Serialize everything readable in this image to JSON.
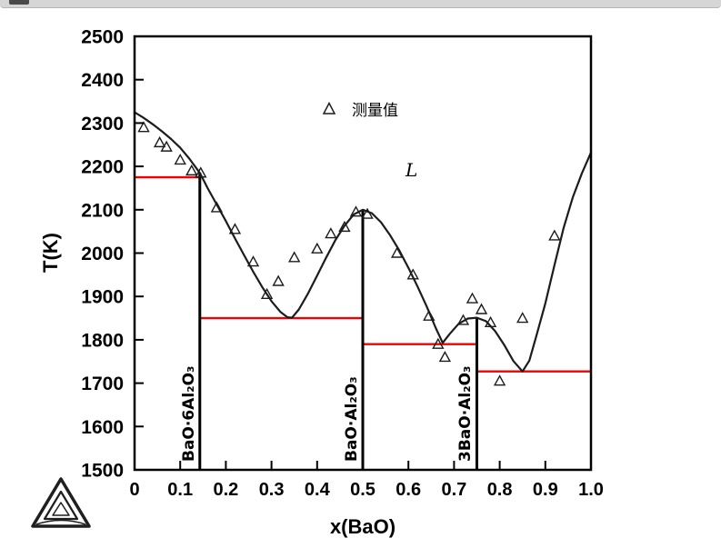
{
  "window": {
    "top_bar": "window-edge"
  },
  "chart_data": {
    "type": "line",
    "title": "",
    "xlabel": "x(BaO)",
    "ylabel": "T(K)",
    "xlim": [
      0,
      1.0
    ],
    "ylim": [
      1500,
      2500
    ],
    "grid": false,
    "xticks": {
      "values": [
        0,
        0.1,
        0.2,
        0.3,
        0.4,
        0.5,
        0.6,
        0.7,
        0.8,
        0.9,
        1.0
      ],
      "labels": [
        "0",
        "0.1",
        "0.2",
        "0.3",
        "0.4",
        "0.5",
        "0.6",
        "0.7",
        "0.8",
        "0.9",
        "1.0"
      ]
    },
    "yticks": {
      "values": [
        1500,
        1600,
        1700,
        1800,
        1900,
        2000,
        2100,
        2200,
        2300,
        2400,
        2500
      ],
      "labels": [
        "1500",
        "1600",
        "1700",
        "1800",
        "1900",
        "2000",
        "2100",
        "2200",
        "2300",
        "2400",
        "2500"
      ]
    },
    "series": [
      {
        "name": "liquidus-curve",
        "type": "line",
        "color": "#1c1c1c",
        "points": [
          [
            0,
            2325
          ],
          [
            0.02,
            2312
          ],
          [
            0.04,
            2297
          ],
          [
            0.06,
            2281
          ],
          [
            0.08,
            2263
          ],
          [
            0.1,
            2243
          ],
          [
            0.12,
            2218
          ],
          [
            0.143,
            2185
          ],
          [
            0.16,
            2150
          ],
          [
            0.18,
            2112
          ],
          [
            0.2,
            2074
          ],
          [
            0.22,
            2034
          ],
          [
            0.24,
            1995
          ],
          [
            0.26,
            1957
          ],
          [
            0.28,
            1921
          ],
          [
            0.3,
            1889
          ],
          [
            0.32,
            1864
          ],
          [
            0.335,
            1852
          ],
          [
            0.345,
            1851
          ],
          [
            0.36,
            1870
          ],
          [
            0.38,
            1907
          ],
          [
            0.4,
            1948
          ],
          [
            0.42,
            1990
          ],
          [
            0.44,
            2030
          ],
          [
            0.46,
            2063
          ],
          [
            0.48,
            2089
          ],
          [
            0.5,
            2100
          ],
          [
            0.52,
            2092
          ],
          [
            0.54,
            2071
          ],
          [
            0.56,
            2041
          ],
          [
            0.58,
            2006
          ],
          [
            0.6,
            1966
          ],
          [
            0.62,
            1923
          ],
          [
            0.64,
            1877
          ],
          [
            0.66,
            1827
          ],
          [
            0.675,
            1793
          ],
          [
            0.69,
            1813
          ],
          [
            0.71,
            1837
          ],
          [
            0.73,
            1849
          ],
          [
            0.75,
            1851
          ],
          [
            0.77,
            1843
          ],
          [
            0.79,
            1820
          ],
          [
            0.81,
            1788
          ],
          [
            0.83,
            1751
          ],
          [
            0.85,
            1727
          ],
          [
            0.865,
            1752
          ],
          [
            0.88,
            1808
          ],
          [
            0.9,
            1884
          ],
          [
            0.92,
            1972
          ],
          [
            0.94,
            2058
          ],
          [
            0.96,
            2128
          ],
          [
            0.98,
            2184
          ],
          [
            1.0,
            2232
          ]
        ]
      },
      {
        "name": "measured-values",
        "type": "scatter",
        "marker": "triangle-open",
        "color": "#1c1c1c",
        "points": [
          [
            0.02,
            2290
          ],
          [
            0.055,
            2255
          ],
          [
            0.07,
            2245
          ],
          [
            0.1,
            2215
          ],
          [
            0.125,
            2190
          ],
          [
            0.145,
            2185
          ],
          [
            0.18,
            2105
          ],
          [
            0.22,
            2055
          ],
          [
            0.26,
            1980
          ],
          [
            0.29,
            1905
          ],
          [
            0.315,
            1935
          ],
          [
            0.35,
            1990
          ],
          [
            0.4,
            2010
          ],
          [
            0.43,
            2045
          ],
          [
            0.46,
            2060
          ],
          [
            0.485,
            2095
          ],
          [
            0.51,
            2090
          ],
          [
            0.575,
            2000
          ],
          [
            0.61,
            1950
          ],
          [
            0.645,
            1855
          ],
          [
            0.665,
            1790
          ],
          [
            0.68,
            1760
          ],
          [
            0.72,
            1845
          ],
          [
            0.74,
            1895
          ],
          [
            0.76,
            1870
          ],
          [
            0.78,
            1840
          ],
          [
            0.8,
            1705
          ],
          [
            0.85,
            1850
          ],
          [
            0.92,
            2040
          ]
        ]
      }
    ],
    "invariant_lines": [
      {
        "T": 2175,
        "x1": 0,
        "x2": 0.143,
        "color": "#f40000"
      },
      {
        "T": 1850,
        "x1": 0.143,
        "x2": 0.5,
        "color": "#f40000"
      },
      {
        "T": 1790,
        "x1": 0.5,
        "x2": 0.75,
        "color": "#f40000"
      },
      {
        "T": 1727,
        "x1": 0.75,
        "x2": 1.0,
        "color": "#f40000"
      }
    ],
    "compound_lines": [
      {
        "x": 0.143,
        "T_top": 2185,
        "label": "BaO·6Al₂O₃"
      },
      {
        "x": 0.5,
        "T_top": 2100,
        "label": "BaO·Al₂O₃"
      },
      {
        "x": 0.75,
        "T_top": 1850,
        "label": "3BaO·Al₂O₃"
      }
    ],
    "legend": {
      "marker_icon": "triangle-marker-icon",
      "label": "测量值",
      "x": 0.42,
      "T": 2330,
      "position": "inside-top-center"
    },
    "annotations": [
      {
        "text": "L",
        "x": 0.6,
        "T": 2190,
        "style": "italic",
        "meaning": "liquid-phase-region"
      }
    ],
    "colors": {
      "curve": "#1c1c1c",
      "invariant": "#f40000",
      "marker": "#1c1c1c",
      "axis": "#000000"
    }
  },
  "logo": {
    "name": "thermocalc-triangle-logo"
  }
}
